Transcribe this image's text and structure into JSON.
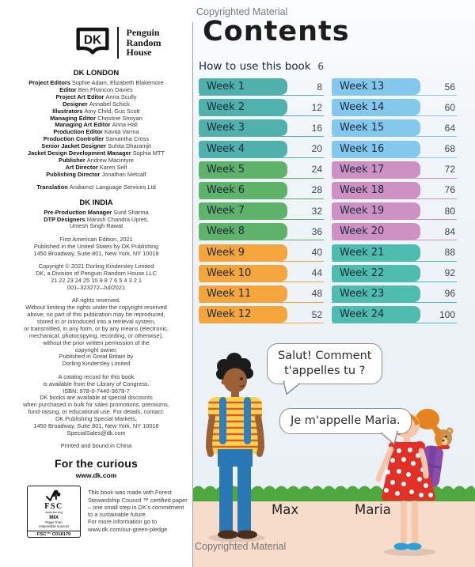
{
  "page": {
    "watermark": "Copyrighted Material"
  },
  "left_column": {
    "logo": {
      "dk": "DK",
      "penguin": [
        "Penguin",
        "Random",
        "House"
      ]
    },
    "dk_london": {
      "heading": "DK LONDON",
      "credits": [
        {
          "role": "Project Editors",
          "name": "Sophie Adam, Elizabeth Blakemore"
        },
        {
          "role": "Editor",
          "name": "Ben Ffrancon Davies"
        },
        {
          "role": "Project Art Editor",
          "name": "Anna Scully"
        },
        {
          "role": "Designer",
          "name": "Annabel Schick"
        },
        {
          "role": "Illustrators",
          "name": "Amy Child, Gus Scott"
        },
        {
          "role": "Managing Editor",
          "name": "Christine Stroyan"
        },
        {
          "role": "Managing Art Editor",
          "name": "Anna Hall"
        },
        {
          "role": "Production Editor",
          "name": "Kavita Varma"
        },
        {
          "role": "Production Controller",
          "name": "Samantha Cross"
        },
        {
          "role": "Senior Jacket Designer",
          "name": "Suhita Dharamjit"
        },
        {
          "role": "Jacket Design Development Manager",
          "name": "Sophia MTT"
        },
        {
          "role": "Publisher",
          "name": "Andrew Macintyre"
        },
        {
          "role": "Art Director",
          "name": "Karen Self"
        },
        {
          "role": "Publishing Director",
          "name": "Jonathan Metcalf"
        }
      ],
      "translation": [
        {
          "role": "Translation",
          "name": "Andiamo! Language Services Ltd"
        }
      ]
    },
    "dk_india": {
      "heading": "DK INDIA",
      "credits": [
        {
          "role": "Pre-Production Manager",
          "name": "Sunil Sharma"
        },
        {
          "role": "DTP Designers",
          "name": "Manish Chandra Upreti,"
        },
        {
          "role": "",
          "name": "Umesh Singh Rawat"
        }
      ]
    },
    "paragraphs": [
      [
        "First American Edition, 2021",
        "Published in the United States by DK Publishing",
        "1450 Broadway, Suite 801, New York, NY 10018"
      ],
      [
        "Copyright © 2021 Dorling Kindersley Limited",
        "DK, a Division of Penguin Random House LLC",
        "21 22 23 24 25 10 9 8 7 6 5 4 3 2 1",
        "001–323272–Jul/2021"
      ],
      [
        "All rights reserved.",
        "Without limiting the rights under the copyright reserved",
        "above, no part of this publication may be reproduced,",
        "stored in or introduced into a retrieval system,",
        "or transmitted, in any form, or by any means (electronic,",
        "mechanical, photocopying, recording, or otherwise),",
        "without the prior written permission of the",
        "copyright owner.",
        "Published in Great Britain by",
        "Dorling Kindersley Limited"
      ],
      [
        "A catalog record for this book",
        "is available from the Library of Congress.",
        "ISBN: 978-0-7440-3678-7",
        "DK books are available at special discounts",
        "when purchased in bulk for sales promotions, premiums,",
        "fund-raising, or educational use. For details, contact:",
        "DK Publishing Special Markets,",
        "1450 Broadway, Suite 801, New York, NY 10018",
        "SpecialSales@dk.com"
      ],
      [
        "Printed and bound in China"
      ]
    ],
    "tagline": "For the curious",
    "website": "www.dk.com",
    "fsc": {
      "word": "FSC",
      "url": "www.fsc.org",
      "mix": "MIX",
      "paper_line1": "Paper from",
      "paper_line2": "responsible sources",
      "code": "FSC™ C018179",
      "text_lines": [
        "This book was made with Forest",
        "Stewardship Council ™ certified paper",
        "– one small step in DK's commitment",
        "to a sustainable future.",
        "For more information go to",
        "www.dk.com/our-green-pledge"
      ]
    }
  },
  "contents": {
    "title": "Contents",
    "how_to": {
      "label": "How to use this book",
      "page": "6"
    },
    "weeks": [
      {
        "label": "Week 1",
        "page": "8",
        "color": "#4fb0ac"
      },
      {
        "label": "Week 2",
        "page": "12",
        "color": "#4fb0ac"
      },
      {
        "label": "Week 3",
        "page": "16",
        "color": "#4fb0ac"
      },
      {
        "label": "Week 4",
        "page": "20",
        "color": "#4fb0ac"
      },
      {
        "label": "Week 5",
        "page": "24",
        "color": "#5fb26a"
      },
      {
        "label": "Week 6",
        "page": "28",
        "color": "#5fb26a"
      },
      {
        "label": "Week 7",
        "page": "32",
        "color": "#5fb26a"
      },
      {
        "label": "Week 8",
        "page": "36",
        "color": "#5fb26a"
      },
      {
        "label": "Week 9",
        "page": "40",
        "color": "#f4a63c"
      },
      {
        "label": "Week 10",
        "page": "44",
        "color": "#f4a63c"
      },
      {
        "label": "Week 11",
        "page": "48",
        "color": "#f4a63c"
      },
      {
        "label": "Week 12",
        "page": "52",
        "color": "#f4a63c"
      },
      {
        "label": "Week 13",
        "page": "56",
        "color": "#85c8ee"
      },
      {
        "label": "Week 14",
        "page": "60",
        "color": "#85c8ee"
      },
      {
        "label": "Week 15",
        "page": "64",
        "color": "#85c8ee"
      },
      {
        "label": "Week 16",
        "page": "68",
        "color": "#85c8ee"
      },
      {
        "label": "Week 17",
        "page": "72",
        "color": "#cd92c3"
      },
      {
        "label": "Week 18",
        "page": "76",
        "color": "#cd92c3"
      },
      {
        "label": "Week 19",
        "page": "80",
        "color": "#cd92c3"
      },
      {
        "label": "Week 20",
        "page": "84",
        "color": "#cd92c3"
      },
      {
        "label": "Week 21",
        "page": "88",
        "color": "#4fbcb0"
      },
      {
        "label": "Week 22",
        "page": "92",
        "color": "#4fbcb0"
      },
      {
        "label": "Week 23",
        "page": "96",
        "color": "#4fbcb0"
      },
      {
        "label": "Week 24",
        "page": "100",
        "color": "#4fbcb0"
      }
    ]
  },
  "illustration": {
    "bubble_max": "Salut! Comment\nt'appelles tu ?",
    "bubble_maria": "Je m'appelle Maria.",
    "max_name": "Max",
    "maria_name": "Maria"
  }
}
